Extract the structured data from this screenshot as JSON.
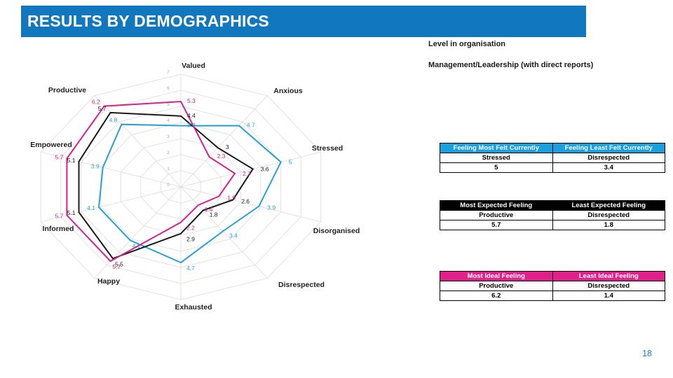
{
  "title": "RESULTS BY DEMOGRAPHICS",
  "subheading": {
    "line1": "Level in organisation",
    "line2": "Management/Leadership (with direct reports)"
  },
  "page_number": "18",
  "colors": {
    "title_bar": "#1177BE",
    "series_currently": "#2B9FD7",
    "series_expected": "#1A1A1A",
    "series_ideal": "#D4218C",
    "table_header_currently": "#1C9FDD",
    "table_header_expected": "#000000",
    "table_header_ideal": "#E0218A",
    "grid": "#E2E2E2",
    "tick_label": "#A3A3A3",
    "page_number": "#1C86C8"
  },
  "chart_data": {
    "type": "radar",
    "title": "",
    "categories": [
      "Valued",
      "Anxious",
      "Stressed",
      "Disorganised",
      "Disrespected",
      "Exhausted",
      "Happy",
      "Informed",
      "Empowered",
      "Productive"
    ],
    "axis_range": [
      0,
      7
    ],
    "tick_step": 1,
    "grid": true,
    "legend_position": "none",
    "series": [
      {
        "name": "Currently",
        "color": "#2B9FD7",
        "values": [
          3.8,
          4.7,
          5,
          3.9,
          3.4,
          4.7,
          4.1,
          4.1,
          3.9,
          4.8
        ]
      },
      {
        "name": "Expected",
        "color": "#1A1A1A",
        "values": [
          4.4,
          3,
          3.6,
          2.6,
          1.8,
          2.9,
          5.5,
          5.1,
          5.1,
          5.7
        ]
      },
      {
        "name": "Ideal",
        "color": "#D4218C",
        "values": [
          5.3,
          2.3,
          2.7,
          1.9,
          1.4,
          2.2,
          5.7,
          5.7,
          5.7,
          6.2
        ]
      }
    ]
  },
  "tables": [
    {
      "id": "currently",
      "accent": "#1C9FDD",
      "headers": [
        "Feeling Most Felt Currently",
        "Feeling Least Felt Currently"
      ],
      "rows": [
        [
          "Stressed",
          "Disrespected"
        ],
        [
          "5",
          "3.4"
        ]
      ]
    },
    {
      "id": "expected",
      "accent": "#000000",
      "headers": [
        "Most Expected Feeling",
        "Least Expected Feeling"
      ],
      "rows": [
        [
          "Productive",
          "Disrespected"
        ],
        [
          "5.7",
          "1.8"
        ]
      ]
    },
    {
      "id": "ideal",
      "accent": "#E0218A",
      "headers": [
        "Most Ideal Feeling",
        "Least Ideal Feeling"
      ],
      "rows": [
        [
          "Productive",
          "Disrespected"
        ],
        [
          "6.2",
          "1.4"
        ]
      ]
    }
  ]
}
